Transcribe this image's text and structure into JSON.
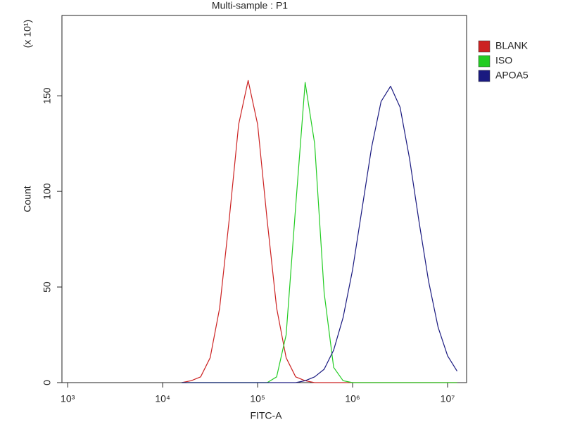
{
  "chart_data": {
    "type": "line",
    "title": "Multi-sample : P1",
    "xlabel": "FITC-A",
    "ylabel": "Count",
    "y_multiplier": "(x 10¹)",
    "xscale": "log",
    "legend": "right",
    "x": [
      15849,
      19953,
      25119,
      31623,
      39811,
      50119,
      63096,
      79433,
      100000,
      125893,
      158489,
      199526,
      251189,
      316228,
      398107,
      501187,
      630957,
      794328,
      1000000,
      1258925,
      1584893,
      1995262,
      2511886,
      3162278,
      3981072,
      5011872,
      6309573,
      7943282,
      10000000,
      12589254
    ],
    "series": [
      {
        "name": "BLANK",
        "color": "#cc2222",
        "values": [
          0,
          1,
          3,
          13,
          39,
          85,
          135,
          158,
          135,
          85,
          39,
          13,
          3,
          1,
          0,
          0,
          0,
          0,
          0,
          0,
          0,
          0,
          0,
          0,
          0,
          0,
          0,
          0,
          0,
          0
        ]
      },
      {
        "name": "ISO",
        "color": "#22cc22",
        "values": [
          0,
          0,
          0,
          0,
          0,
          0,
          0,
          0,
          0,
          0,
          3,
          25,
          92,
          157,
          125,
          47,
          8,
          1,
          0,
          0,
          0,
          0,
          0,
          0,
          0,
          0,
          0,
          0,
          0,
          0
        ]
      },
      {
        "name": "APOA5",
        "color": "#1a1a80",
        "values": [
          0,
          0,
          0,
          0,
          0,
          0,
          0,
          0,
          0,
          0,
          0,
          0,
          0,
          1,
          3,
          7,
          17,
          34,
          59,
          91,
          123,
          147,
          155,
          144,
          117,
          84,
          53,
          29,
          14,
          6
        ]
      }
    ],
    "xlim": [
      870,
      15850000
    ],
    "xticks": [
      {
        "value": 1000,
        "label": "10³"
      },
      {
        "value": 10000,
        "label": "10⁴"
      },
      {
        "value": 100000,
        "label": "10⁵"
      },
      {
        "value": 1000000,
        "label": "10⁶"
      },
      {
        "value": 10000000,
        "label": "10⁷"
      }
    ],
    "ylim": [
      0,
      192
    ],
    "yticks": [
      0,
      50,
      100,
      150
    ]
  }
}
